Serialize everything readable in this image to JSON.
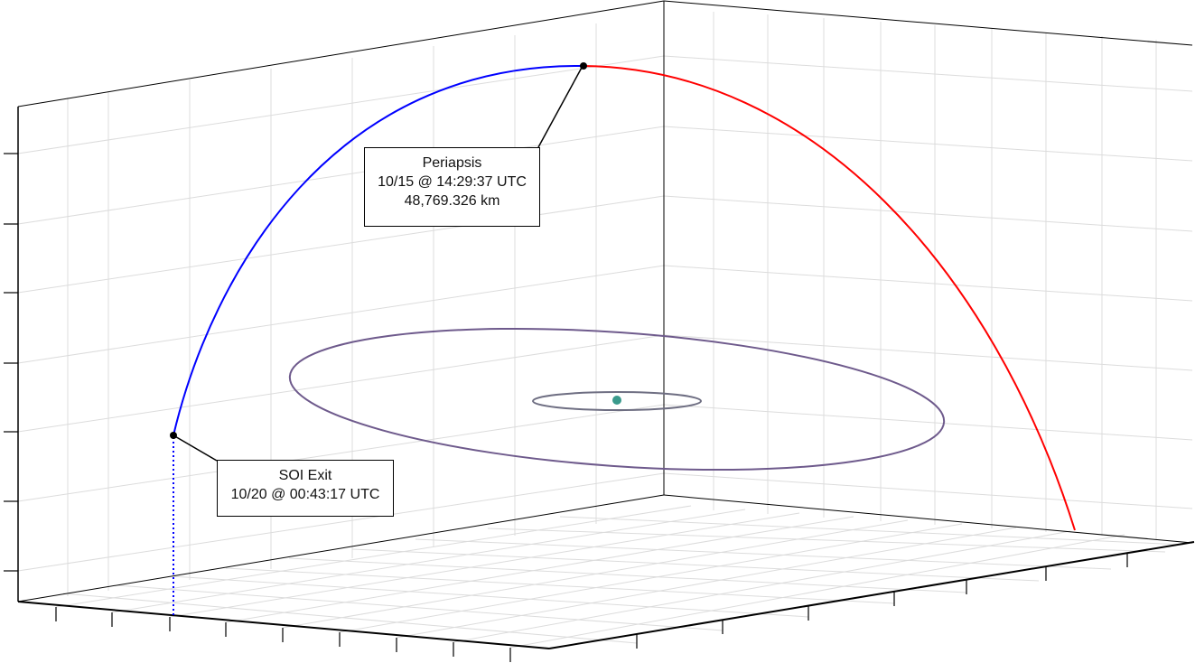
{
  "annotations": {
    "periapsis": {
      "title": "Periapsis",
      "time": "10/15 @ 14:29:37 UTC",
      "altitude": "48,769.326 km"
    },
    "soi_exit": {
      "title": "SOI Exit",
      "time": "10/20 @ 00:43:17 UTC"
    }
  },
  "colors": {
    "incoming_trajectory": "#ff0000",
    "outgoing_trajectory": "#0000ff",
    "moon_orbit": "#6e5a8c",
    "inner_orbit": "#6e6e82",
    "central_body": "#3a9a8c",
    "grid": "#d8d8d8",
    "axis": "#000000"
  },
  "icons": {
    "event_marker": "black-dot",
    "central_body": "teal-dot"
  }
}
